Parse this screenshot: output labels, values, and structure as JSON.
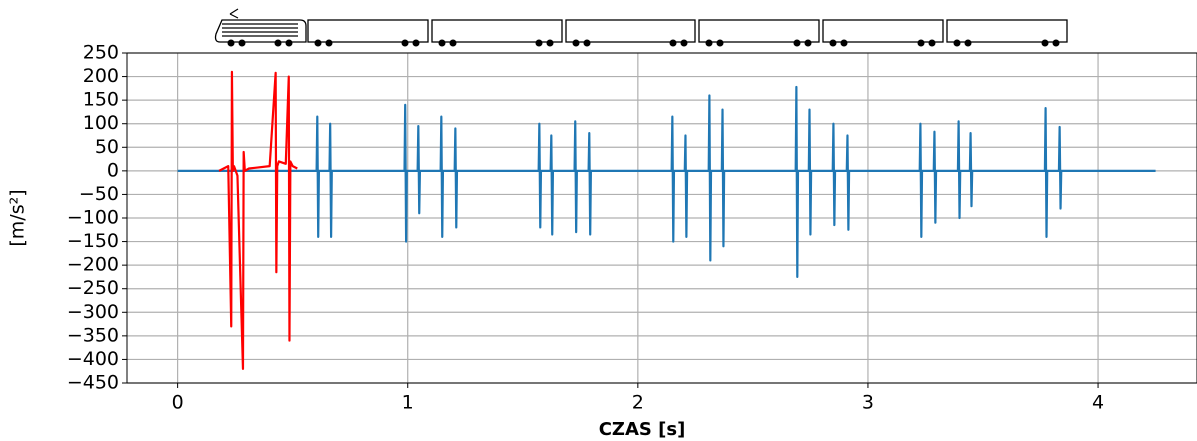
{
  "chart_data": {
    "type": "line",
    "xlabel": "CZAS [s]",
    "ylabel": "[m/s²]",
    "xlim": [
      -0.22,
      4.43
    ],
    "ylim": [
      -450,
      250
    ],
    "xticks": [
      0,
      1,
      2,
      3,
      4
    ],
    "yticks": [
      {
        "value": -450,
        "label": "−450"
      },
      {
        "value": -400,
        "label": "−400"
      },
      {
        "value": -350,
        "label": "−350"
      },
      {
        "value": -300,
        "label": "−300"
      },
      {
        "value": -250,
        "label": "−250"
      },
      {
        "value": -200,
        "label": "−200"
      },
      {
        "value": -150,
        "label": "−150"
      },
      {
        "value": -100,
        "label": "−100"
      },
      {
        "value": -50,
        "label": "−50"
      },
      0,
      50,
      100,
      150,
      200,
      250
    ],
    "grid": true,
    "series": [
      {
        "color": "#1f77b4",
        "x": [
          0,
          0.55,
          0.604,
          0.607,
          0.611,
          0.614,
          0.66,
          0.663,
          0.667,
          0.67,
          0.986,
          0.989,
          0.993,
          0.996,
          1.043,
          1.046,
          1.05,
          1.053,
          1.143,
          1.146,
          1.15,
          1.153,
          1.204,
          1.207,
          1.211,
          1.214,
          1.569,
          1.572,
          1.576,
          1.579,
          1.621,
          1.624,
          1.628,
          1.631,
          1.725,
          1.728,
          1.732,
          1.735,
          1.786,
          1.789,
          1.793,
          1.796,
          2.147,
          2.15,
          2.154,
          2.157,
          2.204,
          2.207,
          2.211,
          2.214,
          2.308,
          2.311,
          2.315,
          2.318,
          2.365,
          2.368,
          2.372,
          2.375,
          2.686,
          2.689,
          2.693,
          2.696,
          2.743,
          2.746,
          2.75,
          2.753,
          2.847,
          2.85,
          2.854,
          2.857,
          2.908,
          2.911,
          2.915,
          2.918,
          3.225,
          3.228,
          3.232,
          3.235,
          3.286,
          3.289,
          3.293,
          3.296,
          3.391,
          3.394,
          3.398,
          3.401,
          3.443,
          3.446,
          3.45,
          3.453,
          3.769,
          3.772,
          3.776,
          3.779,
          3.83,
          3.833,
          3.837,
          3.84,
          4.25
        ],
        "values": [
          0,
          0,
          0,
          115,
          -140,
          0,
          0,
          100,
          -140,
          0,
          0,
          140,
          -150,
          0,
          0,
          95,
          -90,
          0,
          0,
          115,
          -140,
          0,
          0,
          90,
          -120,
          0,
          0,
          100,
          -120,
          0,
          0,
          75,
          -135,
          0,
          0,
          105,
          -130,
          0,
          0,
          80,
          -135,
          0,
          0,
          115,
          -150,
          0,
          0,
          75,
          -140,
          0,
          0,
          160,
          -190,
          0,
          0,
          130,
          -160,
          0,
          0,
          178,
          -225,
          0,
          0,
          130,
          -135,
          0,
          0,
          100,
          -115,
          0,
          0,
          75,
          -125,
          0,
          0,
          100,
          -140,
          0,
          0,
          83,
          -110,
          0,
          0,
          105,
          -100,
          0,
          0,
          80,
          -75,
          0,
          0,
          133,
          -140,
          0,
          0,
          93,
          -80,
          0,
          0
        ]
      },
      {
        "color": "#ff0000",
        "x": [
          0.18,
          0.22,
          0.233,
          0.236,
          0.24,
          0.245,
          0.26,
          0.284,
          0.287,
          0.292,
          0.31,
          0.4,
          0.426,
          0.429,
          0.433,
          0.44,
          0.47,
          0.483,
          0.486,
          0.49,
          0.5,
          0.52
        ],
        "values": [
          0,
          10,
          -330,
          210,
          0,
          10,
          -10,
          -420,
          40,
          0,
          5,
          10,
          208,
          -215,
          10,
          20,
          15,
          200,
          -360,
          20,
          10,
          5
        ]
      }
    ]
  }
}
